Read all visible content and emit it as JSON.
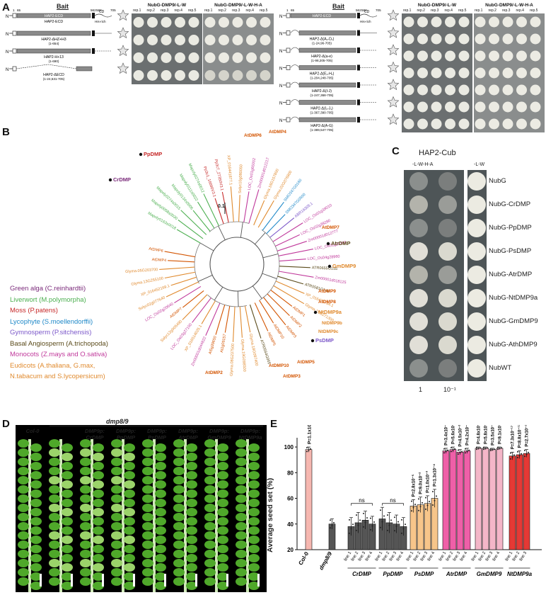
{
  "panels": {
    "a": "A",
    "b": "B",
    "c": "C",
    "d": "D",
    "e": "E"
  },
  "panelA": {
    "bait_title": "Bait",
    "group1": {
      "col1_title": "NubG-DMP9/-L-W",
      "col2_title": "NubG-DMP9/-L-W-H-A",
      "reps": [
        "rep.1",
        "rep.2",
        "rep.3",
        "rep.4",
        "rep.5"
      ],
      "nums": [
        "1",
        "65",
        "562",
        "582",
        "705"
      ],
      "n_term": "N",
      "cd_label": "CD",
      "his_label": "His-rich",
      "constructs": [
        {
          "name": "HAP2-ECD",
          "range": ""
        },
        {
          "name": "HAP2-ΔHZ+H3",
          "range": "(1-654)"
        },
        {
          "name": "HAP2-H+13",
          "range": "(1-690)"
        },
        {
          "name": "HAP2-ΔECD",
          "range": "(1-24,531-705)"
        }
      ]
    },
    "group2": {
      "col1_title": "NubG-DMP9/-L-W",
      "col2_title": "NubG-DMP9/-L-W-H-A",
      "reps": [
        "rep.1",
        "rep.2",
        "rep.3",
        "rep.4",
        "rep.5"
      ],
      "constructs": [
        {
          "name": "HAP2-ECD",
          "range": ""
        },
        {
          "name": "HAP2-Δ(A₁-D₁)",
          "range": "(1-24,96-705)"
        },
        {
          "name": "HAP2-Δ(a-e)",
          "range": "(1-98,205-705)"
        },
        {
          "name": "HAP2-Δ(E₁-H₁)",
          "range": "(1-204,248-705)"
        },
        {
          "name": "HAP2-Δ(I-J)",
          "range": "(1-247,368-705)"
        },
        {
          "name": "HAP2-Δ(I₁-J₁)",
          "range": "(1-367,390-705)"
        },
        {
          "name": "HAP2-Δ(A-G)",
          "range": "(1-389,547-705)"
        }
      ]
    }
  },
  "panelB": {
    "scale": "0.1",
    "legend": [
      {
        "label": "Green alga (C.reinhardtii)",
        "color": "#7a2a7a"
      },
      {
        "label": "Liverwort (M.polymorpha)",
        "color": "#4caf50"
      },
      {
        "label": "Moss (P.patens)",
        "color": "#c62828"
      },
      {
        "label": "Lycophyte (S.moellendorffii)",
        "color": "#1e88c8"
      },
      {
        "label": "Gymnosperm (P.sitchensis)",
        "color": "#7b57c9"
      },
      {
        "label": "Basal Angiosperm (A.trichopoda)",
        "color": "#5a4a1a"
      },
      {
        "label": "Monocots (Z.mays and O.sativa)",
        "color": "#c0399b"
      },
      {
        "label": "Eudicots (A.thaliana, G.max,",
        "color": "#e08a2e"
      },
      {
        "label": "N.tabacum and S.lycopersicum)",
        "color": "#e08a2e"
      }
    ],
    "highlights": [
      {
        "label": "PpDMP",
        "color": "#c62828"
      },
      {
        "label": "CrDMP",
        "color": "#7a2a7a"
      },
      {
        "label": "AtrDMP",
        "color": "#5a4a1a"
      },
      {
        "label": "GmDMP9",
        "color": "#e08a2e"
      },
      {
        "label": "NtDMP9a",
        "color": "#e08a2e"
      },
      {
        "label": "PsDMP",
        "color": "#7b57c9"
      },
      {
        "label": "AtDMP9",
        "color": "#d35400"
      },
      {
        "label": "AtDMP8",
        "color": "#d35400"
      },
      {
        "label": "AtDMP7",
        "color": "#d35400"
      },
      {
        "label": "AtDMP6",
        "color": "#d35400"
      },
      {
        "label": "AtDMP5",
        "color": "#d35400"
      },
      {
        "label": "AtDMP4",
        "color": "#d35400"
      },
      {
        "label": "AtDMP3",
        "color": "#d35400"
      },
      {
        "label": "AtDMP2",
        "color": "#d35400"
      },
      {
        "label": "AtDMP10",
        "color": "#d35400"
      },
      {
        "label": "NtDMP9c",
        "color": "#e08a2e"
      },
      {
        "label": "NtDMP9b",
        "color": "#e08a2e"
      }
    ],
    "leaf_labels": [
      "Mapoly0163s0018",
      "Mapoly0058s0030",
      "Mapoly0274s0015",
      "Mapoly0134s0006",
      "Mapoly0111s0022",
      "Mapoly0274s0012",
      "Pp3c1_16690V3.1",
      "Pp3c7_27350V3.1",
      "XP_016441877.1",
      "Solyc10g080050",
      "LOC_Os01g65002",
      "Zm00001d012217",
      "Glyma.16G157800",
      "Glyma.02G076800",
      "SMO347G0160",
      "SMO347G0500",
      "ABR16305.1",
      "LOC_Os01g39010",
      "LOC_Os02g39280",
      "Zm00001d012777",
      "LOC_Os01g28190",
      "LOC_Os04g28960",
      "ATR0655G155",
      "Zm00001d018125",
      "ATR0581G140",
      "XP_016475784.1",
      "Glyma.15G271300",
      "AtDMP1",
      "AtDMP2",
      "AtDMP3",
      "AtDMP10",
      "AtDMP5",
      "ATR0564G065",
      "Glyma.18G097400",
      "Glyma.19G098500",
      "Glyma.08G237500",
      "At1g09157",
      "At5g39650",
      "Zm00001d044822",
      "XP_016514025.1",
      "LOC_Os03g27100",
      "Solyc12g005490",
      "AtDMP7",
      "LOC_Os02g20640",
      "Solyc02g077640",
      "XP_016452169.1",
      "Glyma.13G255100",
      "Glyma.05G203700",
      "AtDMP4",
      "AtDMP6"
    ]
  },
  "panelC": {
    "title": "HAP2-Cub",
    "col1": "-L-W-H-A",
    "col2": "-L-W",
    "dilutions": [
      "1",
      "10⁻¹"
    ],
    "rows": [
      "NubG",
      "NubG-CrDMP",
      "NubG-PpDMP",
      "NubG-PsDMP",
      "NubG-AtrDMP",
      "NubG-NtDMP9a",
      "NubG-GmDMP9",
      "NubG-AthDMP9",
      "NubWT"
    ],
    "growth": [
      0,
      0.5,
      0,
      0.9,
      0.6,
      1,
      1,
      1,
      0
    ]
  },
  "panelD": {
    "header_group": "dmp8/9",
    "columns": [
      {
        "line1": "Col-0",
        "line2": ""
      },
      {
        "line1": "",
        "line2": ""
      },
      {
        "line1": "DMP9p:",
        "line2": "CrDMP"
      },
      {
        "line1": "DMP9p:",
        "line2": "PpDMP"
      },
      {
        "line1": "DMP9p:",
        "line2": "PsDMP"
      },
      {
        "line1": "DMP9p:",
        "line2": "AtrDMP"
      },
      {
        "line1": "DMP9p:",
        "line2": "GmDMP9"
      },
      {
        "line1": "DMP9p:",
        "line2": "NtDMP9a"
      }
    ]
  },
  "panelE": {
    "ns1": "ns",
    "ns2": "ns",
    "pvals": {
      "col0": "P=1.1x10",
      "PsDMP": [
        "P=2.8x10⁻⁵",
        "P=9.0x10⁻²",
        "P=1.0x10⁻³",
        "P=1.3x10⁻⁴"
      ],
      "AtrDMP": [
        "P=3.4x10⁻¹⁸",
        "P=5.6x10⁻¹⁹",
        "P=4.5x10⁻²⁰",
        "P=4.2x10⁻¹⁹"
      ],
      "GmDMP9": [
        "P=4.8x10⁻²¹",
        "P=5.8x10⁻²¹",
        "P=3.5x10⁻¹⁹",
        "P=9.1x10⁻²⁰"
      ],
      "NtDMP9a": [
        "P=7.3x10⁻¹⁷",
        "P=8.8x10⁻¹⁷",
        "P=2.7x10⁻¹⁷"
      ]
    },
    "group_labels": [
      "CrDMP",
      "PpDMP",
      "PsDMP",
      "AtrDMP",
      "GmDMP9",
      "NtDMP9a"
    ],
    "line_labels": [
      "line 1",
      "line 2",
      "line 3",
      "line 4"
    ],
    "chart_data": {
      "type": "bar",
      "ylabel": "Average seed set (%)",
      "yticks": [
        "20",
        "40",
        "60",
        "80",
        "100"
      ],
      "ylim": [
        20,
        105
      ],
      "categories": [
        "Col-0",
        "dmp8/9",
        "CrDMP line 1",
        "CrDMP line 2",
        "CrDMP line 3",
        "CrDMP line 4",
        "PpDMP line 1",
        "PpDMP line 2",
        "PpDMP line 3",
        "PpDMP line 4",
        "PsDMP line 1",
        "PsDMP line 2",
        "PsDMP line 3",
        "PsDMP line 4",
        "AtrDMP line 1",
        "AtrDMP line 2",
        "AtrDMP line 3",
        "AtrDMP line 4",
        "GmDMP9 line 1",
        "GmDMP9 line 2",
        "GmDMP9 line 3",
        "GmDMP9 line 4",
        "NtDMP9a line 1",
        "NtDMP9a line 2",
        "NtDMP9a line 3"
      ],
      "values": [
        98,
        40,
        38,
        41,
        43,
        40,
        44,
        41,
        40,
        38,
        54,
        55,
        56,
        60,
        97,
        98,
        96,
        97,
        99,
        99,
        98,
        99,
        93,
        94,
        95
      ],
      "errors": [
        2,
        4,
        7,
        8,
        7,
        6,
        9,
        8,
        7,
        7,
        5,
        6,
        6,
        7,
        2,
        2,
        2,
        2,
        1,
        1,
        1,
        1,
        3,
        3,
        3
      ],
      "colors": [
        "#f6b7b0",
        "#555555",
        "#555555",
        "#555555",
        "#555555",
        "#555555",
        "#555555",
        "#555555",
        "#555555",
        "#555555",
        "#f7c58a",
        "#f7c58a",
        "#f7c58a",
        "#f7c58a",
        "#ef5fa8",
        "#ef5fa8",
        "#ef5fa8",
        "#ef5fa8",
        "#f4b6c8",
        "#f4b6c8",
        "#f4b6c8",
        "#f4b6c8",
        "#e53935",
        "#e53935",
        "#e53935"
      ]
    }
  }
}
